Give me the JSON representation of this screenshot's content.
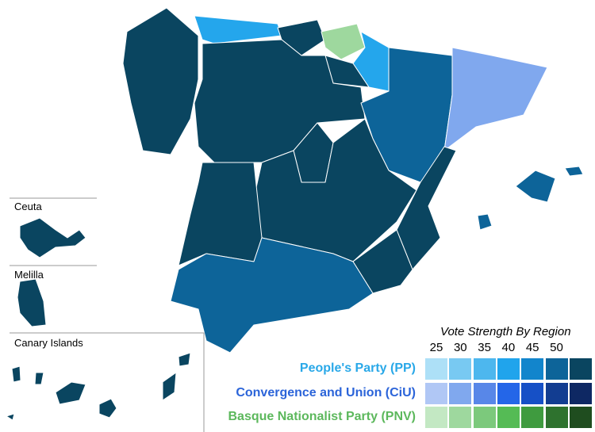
{
  "map": {
    "regions": [
      {
        "name": "Galicia",
        "party": "PP",
        "color": "#0a4560"
      },
      {
        "name": "Asturias",
        "party": "PP",
        "color": "#24a6ec"
      },
      {
        "name": "Cantabria",
        "party": "PP",
        "color": "#0a4560"
      },
      {
        "name": "Basque Country",
        "party": "PNV",
        "color": "#9ed89e"
      },
      {
        "name": "Navarre",
        "party": "PP",
        "color": "#24a6ec"
      },
      {
        "name": "La Rioja",
        "party": "PP",
        "color": "#0a4560"
      },
      {
        "name": "Castile and Leon",
        "party": "PP",
        "color": "#0a4560"
      },
      {
        "name": "Aragon",
        "party": "PP",
        "color": "#0d6499"
      },
      {
        "name": "Catalonia",
        "party": "CiU",
        "color": "#80a8ee"
      },
      {
        "name": "Madrid",
        "party": "PP",
        "color": "#0a4560"
      },
      {
        "name": "Castile-La Mancha",
        "party": "PP",
        "color": "#0a4560"
      },
      {
        "name": "Valencia",
        "party": "PP",
        "color": "#0a4560"
      },
      {
        "name": "Murcia",
        "party": "PP",
        "color": "#0a4560"
      },
      {
        "name": "Extremadura",
        "party": "PP",
        "color": "#0a4560"
      },
      {
        "name": "Andalusia",
        "party": "PP",
        "color": "#0d6499"
      },
      {
        "name": "Balearic Islands",
        "party": "PP",
        "color": "#0d6499"
      },
      {
        "name": "Ceuta",
        "party": "PP",
        "color": "#0a4560"
      },
      {
        "name": "Melilla",
        "party": "PP",
        "color": "#0a4560"
      },
      {
        "name": "Canary Islands",
        "party": "PP",
        "color": "#0a4560"
      }
    ],
    "insets": {
      "ceuta": "Ceuta",
      "melilla": "Melilla",
      "canary": "Canary Islands"
    }
  },
  "legend": {
    "title": "Vote Strength By Region",
    "ticks": [
      "25",
      "30",
      "35",
      "40",
      "45",
      "50"
    ],
    "parties": [
      {
        "label": "People's Party (PP)",
        "color": "#29a8e8",
        "swatches": [
          "#ade0f7",
          "#78c9f2",
          "#4db7ee",
          "#20a4ec",
          "#1285cc",
          "#0d6499",
          "#0a4560"
        ]
      },
      {
        "label": "Convergence and Union (CiU)",
        "color": "#2b64d9",
        "swatches": [
          "#b0c7f5",
          "#80a8ee",
          "#5887e8",
          "#2466e8",
          "#1650c6",
          "#123d91",
          "#0e2863"
        ]
      },
      {
        "label": "Basque Nationalist Party (PNV)",
        "color": "#5cb85c",
        "swatches": [
          "#c3e8c3",
          "#9ed89e",
          "#7cc97c",
          "#55bb55",
          "#3f9b3f",
          "#2e722e",
          "#1f4d1f"
        ]
      }
    ]
  }
}
